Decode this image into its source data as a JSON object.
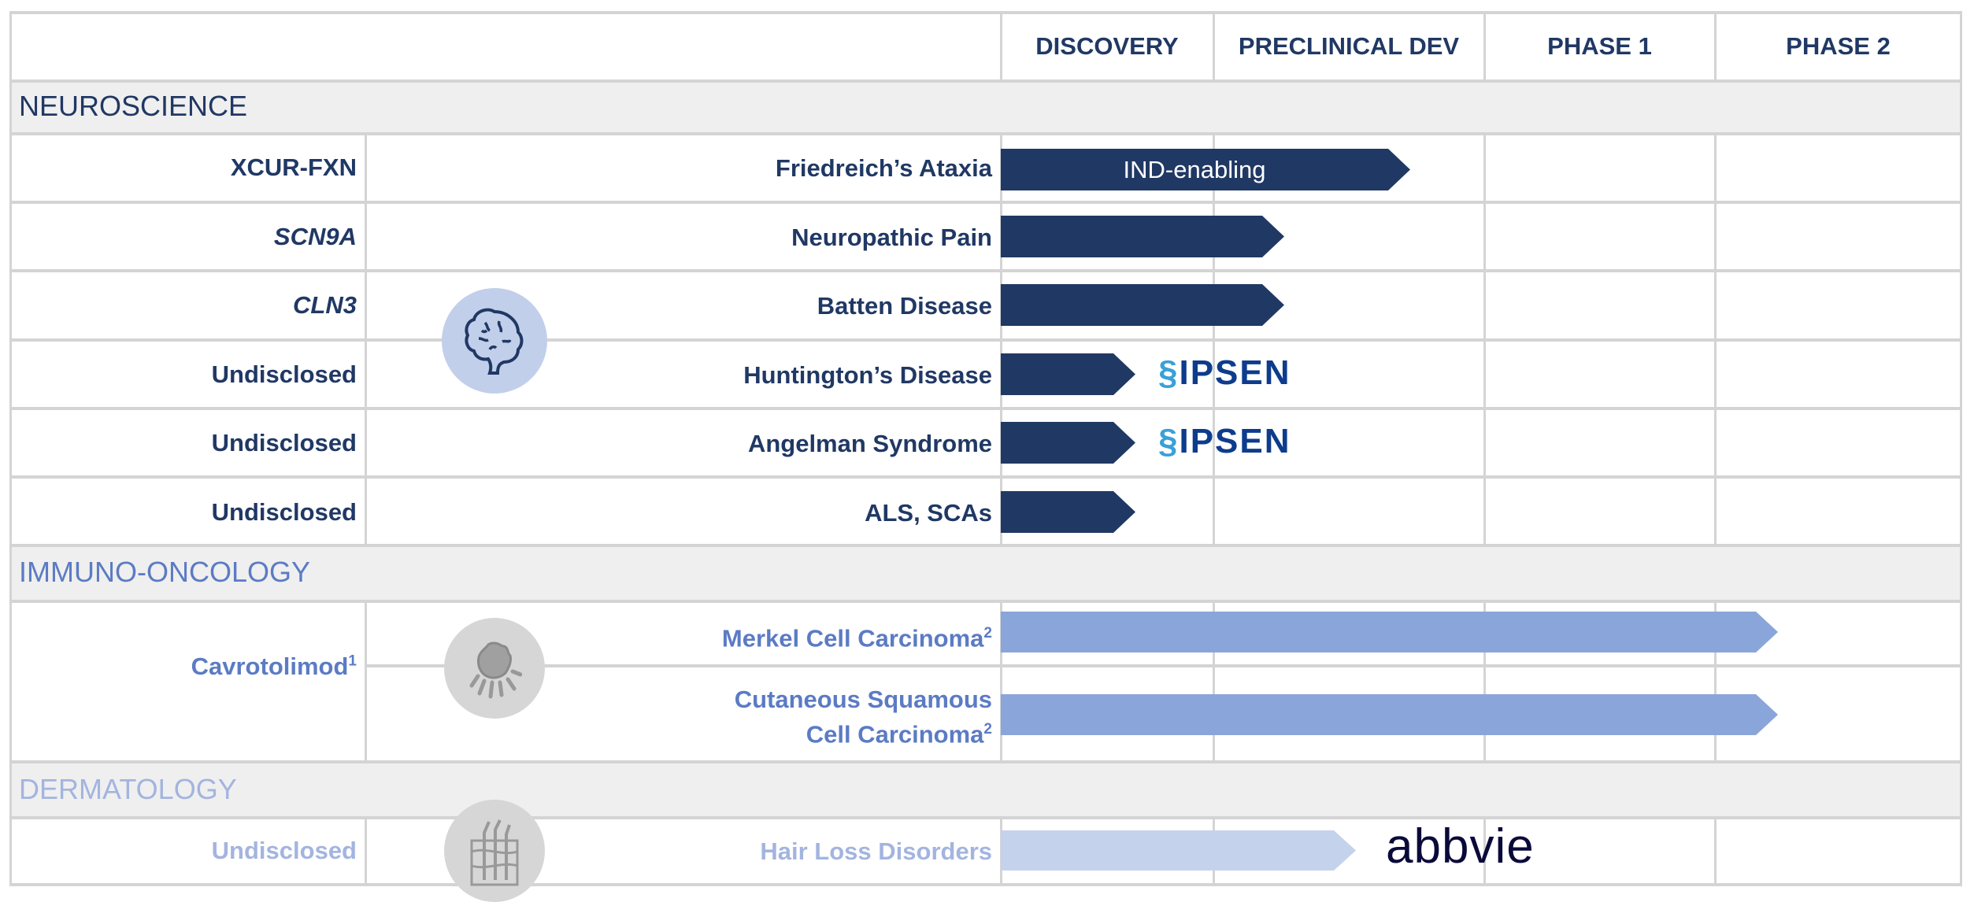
{
  "phases": [
    "DISCOVERY",
    "PRECLINICAL DEV",
    "PHASE 1",
    "PHASE 2"
  ],
  "sections": {
    "neuro": {
      "title": "NEUROSCIENCE",
      "color": "#203864",
      "icon": "brain-icon",
      "rows": [
        {
          "candidate": "XCUR-FXN",
          "indication": "Friedreich’s Ataxia",
          "bar_label": "IND-enabling",
          "progress_phase": 1.7
        },
        {
          "candidate": "SCN9A",
          "indication": "Neuropathic Pain",
          "progress_phase": 1.2
        },
        {
          "candidate": "CLN3",
          "indication": "Batten Disease",
          "progress_phase": 1.2
        },
        {
          "candidate": "Undisclosed",
          "indication": "Huntington’s Disease",
          "progress_phase": 0.6,
          "partner": "IPSEN"
        },
        {
          "candidate": "Undisclosed",
          "indication": "Angelman Syndrome",
          "progress_phase": 0.6,
          "partner": "IPSEN"
        },
        {
          "candidate": "Undisclosed",
          "indication": "ALS, SCAs",
          "progress_phase": 0.6
        }
      ]
    },
    "immuno": {
      "title": "IMMUNO-ONCOLOGY",
      "color": "#5b7bc4",
      "icon": "tumor-cell-icon",
      "candidate": "Cavrotolimod",
      "candidate_sup": "1",
      "rows": [
        {
          "indication": "Merkel Cell Carcinoma",
          "sup": "2",
          "progress_phase": 3.3
        },
        {
          "indication_line1": "Cutaneous Squamous",
          "indication_line2": "Cell Carcinoma",
          "sup": "2",
          "progress_phase": 3.3
        }
      ]
    },
    "derm": {
      "title": "DERMATOLOGY",
      "color": "#a3b4df",
      "icon": "hair-follicle-icon",
      "rows": [
        {
          "candidate": "Undisclosed",
          "indication": "Hair Loss Disorders",
          "progress_phase": 1.6,
          "partner": "abbvie"
        }
      ]
    }
  }
}
